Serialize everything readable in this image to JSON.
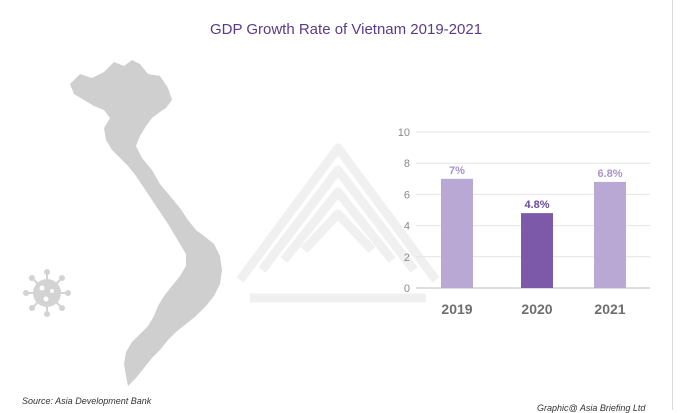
{
  "title": "GDP Growth Rate of Vietnam 2019-2021",
  "source": "Source: Asia Development Bank",
  "credit": "Graphic@ Asia Briefing Ltd",
  "colors": {
    "title": "#5b3b86",
    "bar_light": "#b9a8d3",
    "bar_dark": "#7c5aa9",
    "label_light": "#a893c8",
    "label_dark": "#6a4a98",
    "map": "#cfcfcf",
    "virus": "#d3d3d3"
  },
  "icons": [
    "vietnam-map",
    "virus-icon",
    "watermark-logo"
  ],
  "chart_data": {
    "type": "bar",
    "title": "GDP Growth Rate of Vietnam 2019-2021",
    "categories": [
      "2019",
      "2020",
      "2021"
    ],
    "values": [
      7,
      4.8,
      6.8
    ],
    "value_labels": [
      "7%",
      "4.8%",
      "6.8%"
    ],
    "highlight": [
      false,
      true,
      false
    ],
    "ylim": [
      0,
      10
    ],
    "yticks": [
      0,
      2,
      4,
      6,
      8,
      10
    ],
    "xlabel": "",
    "ylabel": "",
    "grid": true,
    "legend": "none"
  }
}
